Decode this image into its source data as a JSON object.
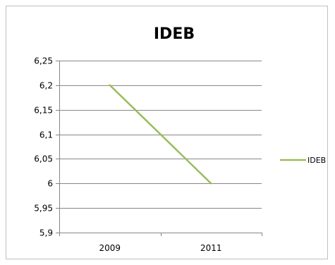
{
  "chart_data": {
    "type": "line",
    "title": "IDEB",
    "categories": [
      "2009",
      "2011"
    ],
    "series": [
      {
        "name": "IDEB",
        "values": [
          6.2,
          6.0
        ],
        "color": "#9bbb59"
      }
    ],
    "ylim": [
      5.9,
      6.25
    ],
    "y_ticks": [
      "5,9",
      "5,95",
      "6",
      "6,05",
      "6,1",
      "6,15",
      "6,2",
      "6,25"
    ],
    "y_tick_values": [
      5.9,
      5.95,
      6.0,
      6.05,
      6.1,
      6.15,
      6.2,
      6.25
    ],
    "grid": true,
    "legend": "right",
    "colors": {
      "grid": "#878787",
      "axis": "#878787"
    }
  }
}
